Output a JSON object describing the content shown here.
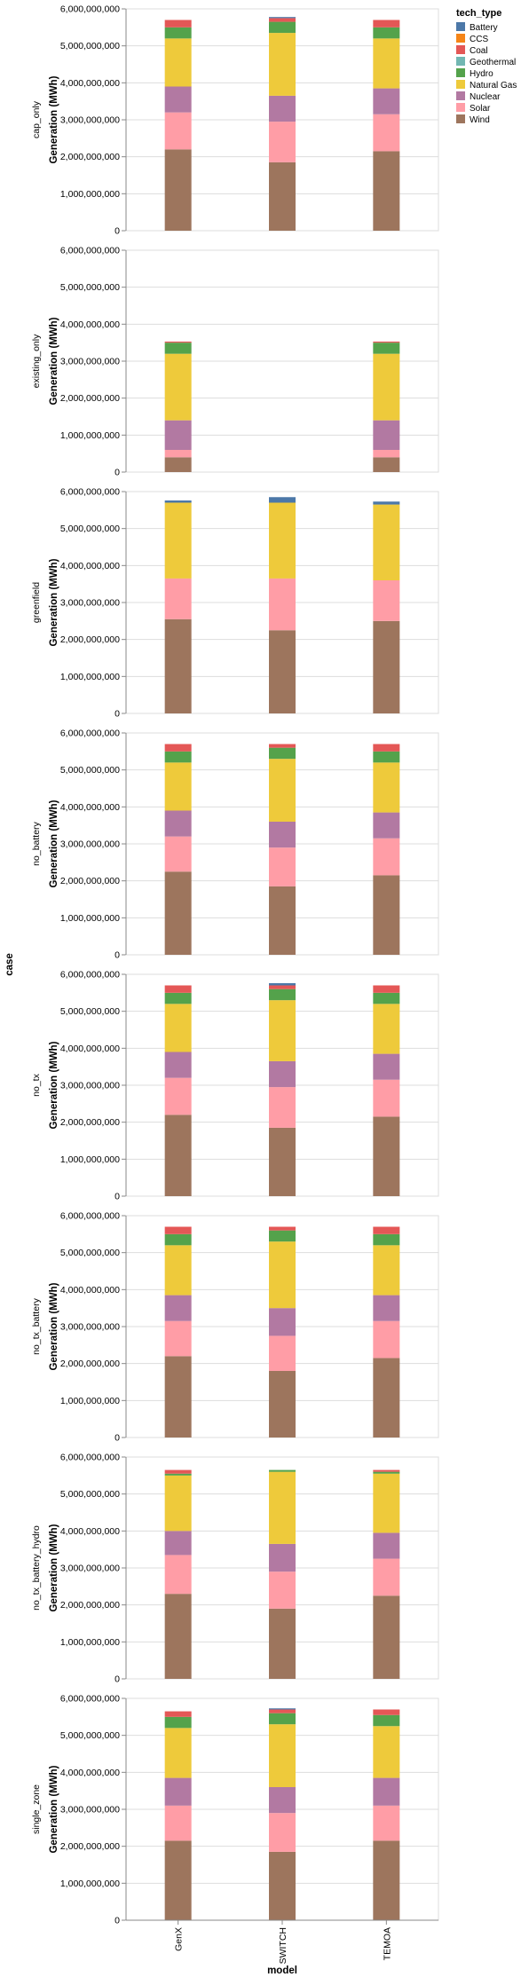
{
  "chart_data": {
    "type": "bar",
    "stacked": true,
    "facet_title": "case",
    "xlabel": "model",
    "ylabel": "Generation (MWh)",
    "ylim": [
      0,
      6000000000
    ],
    "yticks": [
      0,
      1000000000,
      2000000000,
      3000000000,
      4000000000,
      5000000000,
      6000000000
    ],
    "ytick_labels": [
      "0",
      "1,000,000,000",
      "2,000,000,000",
      "3,000,000,000",
      "4,000,000,000",
      "5,000,000,000",
      "6,000,000,000"
    ],
    "grid": true,
    "legend_position": "right",
    "categories": [
      "GenX",
      "SWITCH",
      "TEMOA"
    ],
    "legend": {
      "title": "tech_type",
      "entries": [
        {
          "name": "Battery",
          "color": "#4c78a8"
        },
        {
          "name": "CCS",
          "color": "#f58518"
        },
        {
          "name": "Coal",
          "color": "#e45756"
        },
        {
          "name": "Geothermal",
          "color": "#72b7b2"
        },
        {
          "name": "Hydro",
          "color": "#54a24b"
        },
        {
          "name": "Natural Gas",
          "color": "#eeca3b"
        },
        {
          "name": "Nuclear",
          "color": "#b279a2"
        },
        {
          "name": "Solar",
          "color": "#ff9da6"
        },
        {
          "name": "Wind",
          "color": "#9d755d"
        }
      ]
    },
    "stack_order": [
      "Wind",
      "Solar",
      "Nuclear",
      "Natural Gas",
      "Hydro",
      "Geothermal",
      "Coal",
      "CCS",
      "Battery"
    ],
    "facets": [
      {
        "case": "cap_only",
        "models": {
          "GenX": {
            "Wind": 2200000000,
            "Solar": 1000000000,
            "Nuclear": 700000000,
            "Natural Gas": 1300000000,
            "Hydro": 300000000,
            "Geothermal": 0,
            "Coal": 200000000,
            "CCS": 0,
            "Battery": 0
          },
          "SWITCH": {
            "Wind": 1850000000,
            "Solar": 1100000000,
            "Nuclear": 700000000,
            "Natural Gas": 1700000000,
            "Hydro": 300000000,
            "Geothermal": 0,
            "Coal": 100000000,
            "CCS": 0,
            "Battery": 30000000
          },
          "TEMOA": {
            "Wind": 2150000000,
            "Solar": 1000000000,
            "Nuclear": 700000000,
            "Natural Gas": 1350000000,
            "Hydro": 300000000,
            "Geothermal": 0,
            "Coal": 200000000,
            "CCS": 0,
            "Battery": 0
          }
        }
      },
      {
        "case": "existing_only",
        "models": {
          "GenX": {
            "Wind": 400000000,
            "Solar": 200000000,
            "Nuclear": 800000000,
            "Natural Gas": 1800000000,
            "Hydro": 300000000,
            "Geothermal": 0,
            "Coal": 30000000,
            "CCS": 0,
            "Battery": 0
          },
          "SWITCH": {
            "Wind": 0,
            "Solar": 0,
            "Nuclear": 0,
            "Natural Gas": 0,
            "Hydro": 0,
            "Geothermal": 0,
            "Coal": 0,
            "CCS": 0,
            "Battery": 0
          },
          "TEMOA": {
            "Wind": 400000000,
            "Solar": 200000000,
            "Nuclear": 800000000,
            "Natural Gas": 1800000000,
            "Hydro": 300000000,
            "Geothermal": 0,
            "Coal": 30000000,
            "CCS": 0,
            "Battery": 0
          }
        }
      },
      {
        "case": "greenfield",
        "models": {
          "GenX": {
            "Wind": 2550000000,
            "Solar": 1100000000,
            "Nuclear": 0,
            "Natural Gas": 2050000000,
            "Hydro": 0,
            "Geothermal": 0,
            "Coal": 0,
            "CCS": 0,
            "Battery": 60000000
          },
          "SWITCH": {
            "Wind": 2250000000,
            "Solar": 1400000000,
            "Nuclear": 0,
            "Natural Gas": 2050000000,
            "Hydro": 0,
            "Geothermal": 0,
            "Coal": 0,
            "CCS": 0,
            "Battery": 150000000
          },
          "TEMOA": {
            "Wind": 2500000000,
            "Solar": 1100000000,
            "Nuclear": 0,
            "Natural Gas": 2050000000,
            "Hydro": 0,
            "Geothermal": 0,
            "Coal": 0,
            "CCS": 0,
            "Battery": 80000000
          }
        }
      },
      {
        "case": "no_battery",
        "models": {
          "GenX": {
            "Wind": 2250000000,
            "Solar": 950000000,
            "Nuclear": 700000000,
            "Natural Gas": 1300000000,
            "Hydro": 300000000,
            "Geothermal": 0,
            "Coal": 200000000,
            "CCS": 0,
            "Battery": 0
          },
          "SWITCH": {
            "Wind": 1850000000,
            "Solar": 1050000000,
            "Nuclear": 700000000,
            "Natural Gas": 1700000000,
            "Hydro": 300000000,
            "Geothermal": 0,
            "Coal": 100000000,
            "CCS": 0,
            "Battery": 0
          },
          "TEMOA": {
            "Wind": 2150000000,
            "Solar": 1000000000,
            "Nuclear": 700000000,
            "Natural Gas": 1350000000,
            "Hydro": 300000000,
            "Geothermal": 0,
            "Coal": 200000000,
            "CCS": 0,
            "Battery": 0
          }
        }
      },
      {
        "case": "no_tx",
        "models": {
          "GenX": {
            "Wind": 2200000000,
            "Solar": 1000000000,
            "Nuclear": 700000000,
            "Natural Gas": 1300000000,
            "Hydro": 300000000,
            "Geothermal": 0,
            "Coal": 200000000,
            "CCS": 0,
            "Battery": 0
          },
          "SWITCH": {
            "Wind": 1850000000,
            "Solar": 1100000000,
            "Nuclear": 700000000,
            "Natural Gas": 1650000000,
            "Hydro": 300000000,
            "Geothermal": 0,
            "Coal": 100000000,
            "CCS": 0,
            "Battery": 60000000
          },
          "TEMOA": {
            "Wind": 2150000000,
            "Solar": 1000000000,
            "Nuclear": 700000000,
            "Natural Gas": 1350000000,
            "Hydro": 300000000,
            "Geothermal": 0,
            "Coal": 200000000,
            "CCS": 0,
            "Battery": 0
          }
        }
      },
      {
        "case": "no_tx_battery",
        "models": {
          "GenX": {
            "Wind": 2200000000,
            "Solar": 950000000,
            "Nuclear": 700000000,
            "Natural Gas": 1350000000,
            "Hydro": 300000000,
            "Geothermal": 0,
            "Coal": 200000000,
            "CCS": 0,
            "Battery": 0
          },
          "SWITCH": {
            "Wind": 1800000000,
            "Solar": 950000000,
            "Nuclear": 750000000,
            "Natural Gas": 1800000000,
            "Hydro": 300000000,
            "Geothermal": 0,
            "Coal": 100000000,
            "CCS": 0,
            "Battery": 0
          },
          "TEMOA": {
            "Wind": 2150000000,
            "Solar": 1000000000,
            "Nuclear": 700000000,
            "Natural Gas": 1350000000,
            "Hydro": 300000000,
            "Geothermal": 0,
            "Coal": 200000000,
            "CCS": 0,
            "Battery": 0
          }
        }
      },
      {
        "case": "no_tx_battery_hydro",
        "models": {
          "GenX": {
            "Wind": 2300000000,
            "Solar": 1050000000,
            "Nuclear": 650000000,
            "Natural Gas": 1500000000,
            "Hydro": 50000000,
            "Geothermal": 0,
            "Coal": 100000000,
            "CCS": 0,
            "Battery": 0
          },
          "SWITCH": {
            "Wind": 1900000000,
            "Solar": 1000000000,
            "Nuclear": 750000000,
            "Natural Gas": 1950000000,
            "Hydro": 50000000,
            "Geothermal": 0,
            "Coal": 0,
            "CCS": 0,
            "Battery": 0
          },
          "TEMOA": {
            "Wind": 2250000000,
            "Solar": 1000000000,
            "Nuclear": 700000000,
            "Natural Gas": 1600000000,
            "Hydro": 50000000,
            "Geothermal": 0,
            "Coal": 50000000,
            "CCS": 0,
            "Battery": 0
          }
        }
      },
      {
        "case": "single_zone",
        "models": {
          "GenX": {
            "Wind": 2150000000,
            "Solar": 950000000,
            "Nuclear": 750000000,
            "Natural Gas": 1350000000,
            "Hydro": 300000000,
            "Geothermal": 0,
            "Coal": 150000000,
            "CCS": 0,
            "Battery": 0
          },
          "SWITCH": {
            "Wind": 1850000000,
            "Solar": 1050000000,
            "Nuclear": 700000000,
            "Natural Gas": 1700000000,
            "Hydro": 300000000,
            "Geothermal": 0,
            "Coal": 100000000,
            "CCS": 0,
            "Battery": 30000000
          },
          "TEMOA": {
            "Wind": 2150000000,
            "Solar": 950000000,
            "Nuclear": 750000000,
            "Natural Gas": 1400000000,
            "Hydro": 300000000,
            "Geothermal": 0,
            "Coal": 150000000,
            "CCS": 0,
            "Battery": 0
          }
        }
      }
    ]
  }
}
